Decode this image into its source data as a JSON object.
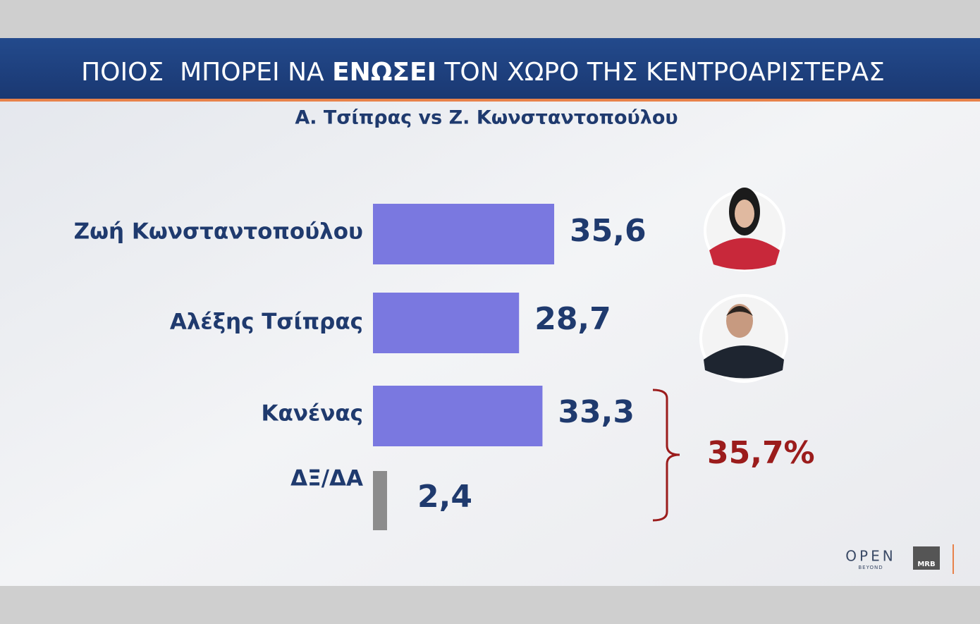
{
  "chart_data": {
    "type": "bar",
    "title": {
      "before": "ΠΟΙΟΣ  ΜΠΟΡΕΙ ΝΑ ",
      "bold": "ΕΝΩΣΕΙ",
      "after": " ΤΟΝ ΧΩΡΟ ΤΗΣ ΚΕΝΤΡΟΑΡΙΣΤΕΡΑΣ"
    },
    "subtitle": "Α. Τσίπρας vs Ζ. Κωνσταντοπούλου",
    "categories": [
      "Ζωή Κωνσταντοπούλου",
      "Αλέξης Τσίπρας",
      "Κανένας",
      "ΔΞ/ΔΑ"
    ],
    "values": [
      35.6,
      28.7,
      33.3,
      2.4
    ],
    "value_labels": [
      "35,6",
      "28,7",
      "33,3",
      "2,4"
    ],
    "colors": [
      "#7a78e0",
      "#7a78e0",
      "#7a78e0",
      "#8c8c8c"
    ],
    "annotation": {
      "value": 35.7,
      "label": "35,7%"
    },
    "logos": {
      "open": "OPEN",
      "beyond": "BEYOND",
      "mrb": "MRB"
    }
  }
}
